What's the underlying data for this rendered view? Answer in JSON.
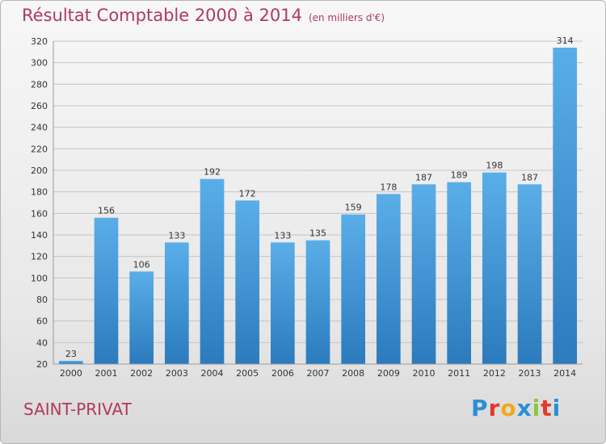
{
  "title": "Résultat Comptable 2000 à 2014",
  "subtitle": "(en milliers d'€)",
  "commune": "SAINT-PRIVAT",
  "logo": {
    "letters": [
      "P",
      "r",
      "o",
      "x",
      "i",
      "t",
      "i"
    ],
    "colors": [
      "#2a8fd6",
      "#e23a2b",
      "#f2a81d",
      "#2a8fd6",
      "#8cc63f",
      "#e23a2b",
      "#2a8fd6"
    ]
  },
  "colors": {
    "bar_top": "#5aaee8",
    "bar_bottom": "#2b7bbd",
    "title": "#b03a5b"
  },
  "chart_data": {
    "type": "bar",
    "categories": [
      "2000",
      "2001",
      "2002",
      "2003",
      "2004",
      "2005",
      "2006",
      "2007",
      "2008",
      "2009",
      "2010",
      "2011",
      "2012",
      "2013",
      "2014"
    ],
    "values": [
      23,
      156,
      106,
      133,
      192,
      172,
      133,
      135,
      159,
      178,
      187,
      189,
      198,
      187,
      314
    ],
    "ylim": [
      20,
      320
    ],
    "yticks": [
      20,
      40,
      60,
      80,
      100,
      120,
      140,
      160,
      180,
      200,
      220,
      240,
      260,
      280,
      300,
      320
    ],
    "grid": true
  }
}
